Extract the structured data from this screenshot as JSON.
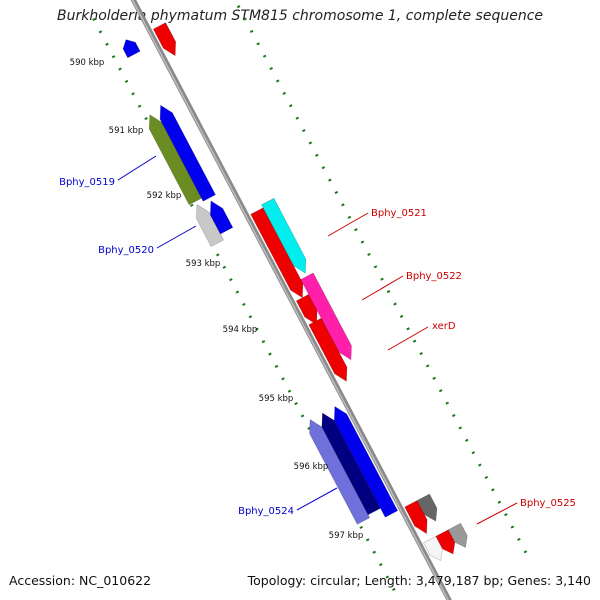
{
  "title": "Burkholderia phymatum STM815 chromosome 1, complete sequence",
  "footer": {
    "accession": "Accession: NC_010622",
    "summary": "Topology: circular; Length: 3,479,187 bp; Genes: 3,140"
  },
  "colors": {
    "backbone": "#8a8a8a",
    "tick": "#1e7a1e",
    "forward_label": "#0000cc",
    "reverse_label": "#cc0000"
  },
  "scale": {
    "ticks": [
      "590 kbp",
      "591 kbp",
      "592 kbp",
      "593 kbp",
      "594 kbp",
      "595 kbp",
      "596 kbp",
      "597 kbp"
    ]
  },
  "genes": [
    {
      "id": "top-blue",
      "label": "",
      "strand": "forward",
      "lane": 2,
      "start": 589.3,
      "end": 589.55,
      "color": "#0000ee"
    },
    {
      "id": "top-red",
      "label": "",
      "strand": "reverse",
      "lane": 1,
      "start": 589.35,
      "end": 589.85,
      "color": "#ee0000"
    },
    {
      "id": "bphy-0519",
      "label": "Bphy_0519",
      "strand": "forward",
      "lane": 3,
      "start": 590.45,
      "end": 591.9,
      "color": "#6b8c23"
    },
    {
      "id": "bphy-0519-blue",
      "label": "",
      "strand": "forward",
      "lane": 2,
      "start": 590.4,
      "end": 591.95,
      "color": "#0000ee"
    },
    {
      "id": "bphy-0520",
      "label": "Bphy_0520",
      "strand": "forward",
      "lane": 3,
      "start": 591.95,
      "end": 592.6,
      "color": "#c8c8c8"
    },
    {
      "id": "bphy-0520-blue",
      "label": "",
      "strand": "forward",
      "lane": 2,
      "start": 592.0,
      "end": 592.5,
      "color": "#0000ee"
    },
    {
      "id": "bphy-0521-red",
      "label": "",
      "strand": "reverse",
      "lane": 1,
      "start": 592.45,
      "end": 593.9,
      "color": "#ee0000"
    },
    {
      "id": "bphy-0521",
      "label": "Bphy_0521",
      "strand": "reverse",
      "lane": 2,
      "start": 592.4,
      "end": 593.6,
      "color": "#00eeee"
    },
    {
      "id": "bphy-0522-red",
      "label": "",
      "strand": "reverse",
      "lane": 1,
      "start": 593.9,
      "end": 594.35,
      "color": "#ee0000"
    },
    {
      "id": "bphy-0522",
      "label": "Bphy_0522",
      "strand": "reverse",
      "lane": 2,
      "start": 593.65,
      "end": 595.05,
      "color": "#ff1faa"
    },
    {
      "id": "xerd",
      "label": "xerD",
      "strand": "reverse",
      "lane": 1,
      "start": 594.3,
      "end": 595.3,
      "color": "#ee0000"
    },
    {
      "id": "bphy-0524",
      "label": "Bphy_0524",
      "strand": "forward",
      "lane": 3,
      "start": 595.55,
      "end": 597.25,
      "color": "#7070dd"
    },
    {
      "id": "bphy-0524-dark",
      "label": "",
      "strand": "forward",
      "lane": 2,
      "start": 595.55,
      "end": 597.2,
      "color": "#000080"
    },
    {
      "id": "bphy-0524-blue",
      "label": "",
      "strand": "forward",
      "lane": 1,
      "start": 595.55,
      "end": 597.35,
      "color": "#0000ee"
    },
    {
      "id": "bphy-0525-red",
      "label": "",
      "strand": "reverse",
      "lane": 1,
      "start": 597.35,
      "end": 597.85,
      "color": "#ee0000"
    },
    {
      "id": "bphy-0525",
      "label": "Bphy_0525",
      "strand": "reverse",
      "lane": 2,
      "start": 597.35,
      "end": 597.75,
      "color": "#666666"
    },
    {
      "id": "bottom-white",
      "label": "",
      "strand": "reverse",
      "lane": 1,
      "start": 597.95,
      "end": 598.3,
      "color": "#f5f5f5"
    },
    {
      "id": "bottom-red",
      "label": "",
      "strand": "reverse",
      "lane": 2,
      "start": 597.95,
      "end": 598.3,
      "color": "#ee0000"
    },
    {
      "id": "bottom-gray",
      "label": "",
      "strand": "reverse",
      "lane": 3,
      "start": 597.95,
      "end": 598.3,
      "color": "#999999"
    }
  ]
}
